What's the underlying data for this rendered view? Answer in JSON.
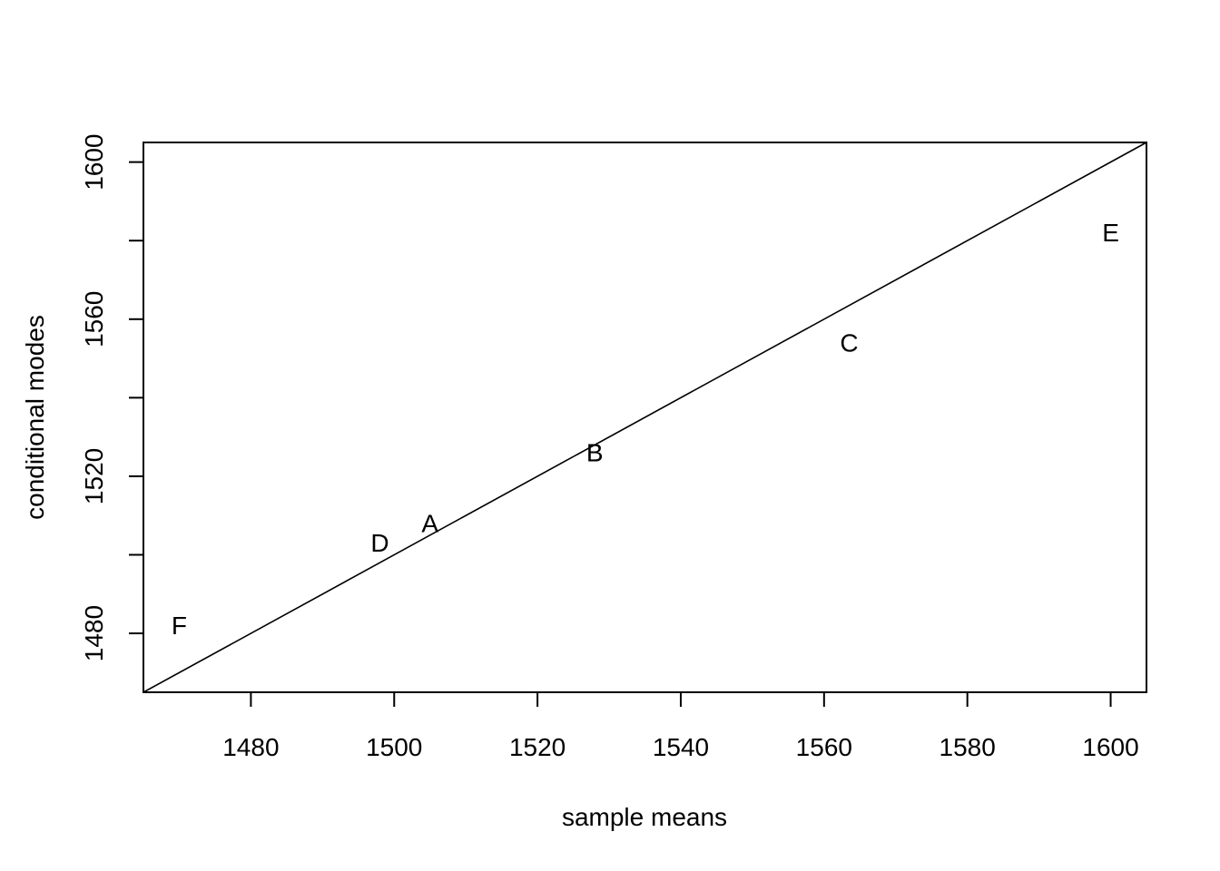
{
  "chart_data": {
    "type": "scatter",
    "xlabel": "sample means",
    "ylabel": "conditional modes",
    "xlim": [
      1465,
      1605
    ],
    "ylim": [
      1465,
      1605
    ],
    "x_ticks": [
      1480,
      1500,
      1520,
      1540,
      1560,
      1580,
      1600
    ],
    "y_ticks": [
      1480,
      1500,
      1520,
      1540,
      1560,
      1580,
      1600
    ],
    "y_tick_labels_shown": [
      1480,
      1520,
      1560,
      1600
    ],
    "grid": false,
    "reference_line": {
      "type": "identity",
      "intercept": 0,
      "slope": 1
    },
    "points": [
      {
        "label": "A",
        "x": 1505,
        "y": 1508
      },
      {
        "label": "B",
        "x": 1528,
        "y": 1526
      },
      {
        "label": "C",
        "x": 1563.5,
        "y": 1554
      },
      {
        "label": "D",
        "x": 1498,
        "y": 1503
      },
      {
        "label": "E",
        "x": 1600,
        "y": 1582
      },
      {
        "label": "F",
        "x": 1470,
        "y": 1482
      }
    ]
  }
}
